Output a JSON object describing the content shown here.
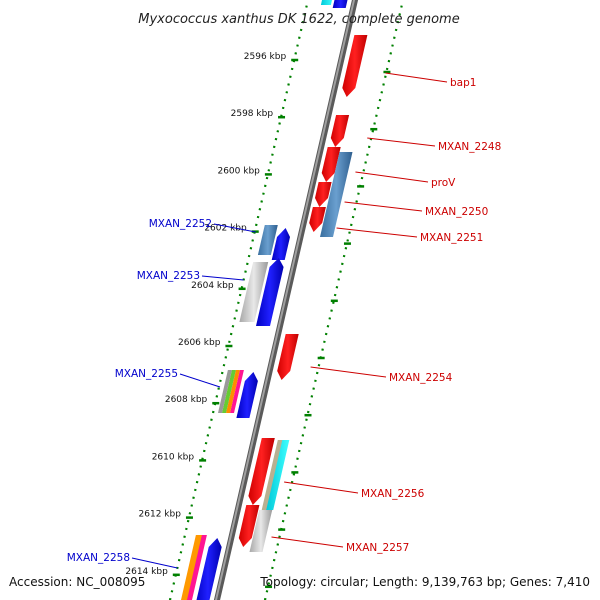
{
  "title": "Myxococcus xanthus DK 1622, complete genome",
  "footer": {
    "accession": "Accession: NC_008095",
    "stats": "Topology: circular; Length: 9,139,763 bp; Genes: 7,410"
  },
  "colors": {
    "forward_strand": "#0000ff",
    "reverse_strand": "#ff0000",
    "backbone": "#808080",
    "ruler_dots": "#008000",
    "forward_label": "#0000cc",
    "reverse_label": "#cc0000"
  },
  "ticks": [
    "2596 kbp",
    "2598 kbp",
    "2600 kbp",
    "2602 kbp",
    "2604 kbp",
    "2606 kbp",
    "2608 kbp",
    "2610 kbp",
    "2612 kbp",
    "2614 kbp"
  ],
  "left_labels": [
    "MXAN_2252",
    "MXAN_2253",
    "MXAN_2255",
    "MXAN_2258"
  ],
  "right_labels": [
    "bap1",
    "MXAN_2248",
    "proV",
    "MXAN_2250",
    "MXAN_2251",
    "MXAN_2254",
    "MXAN_2256",
    "MXAN_2257"
  ]
}
